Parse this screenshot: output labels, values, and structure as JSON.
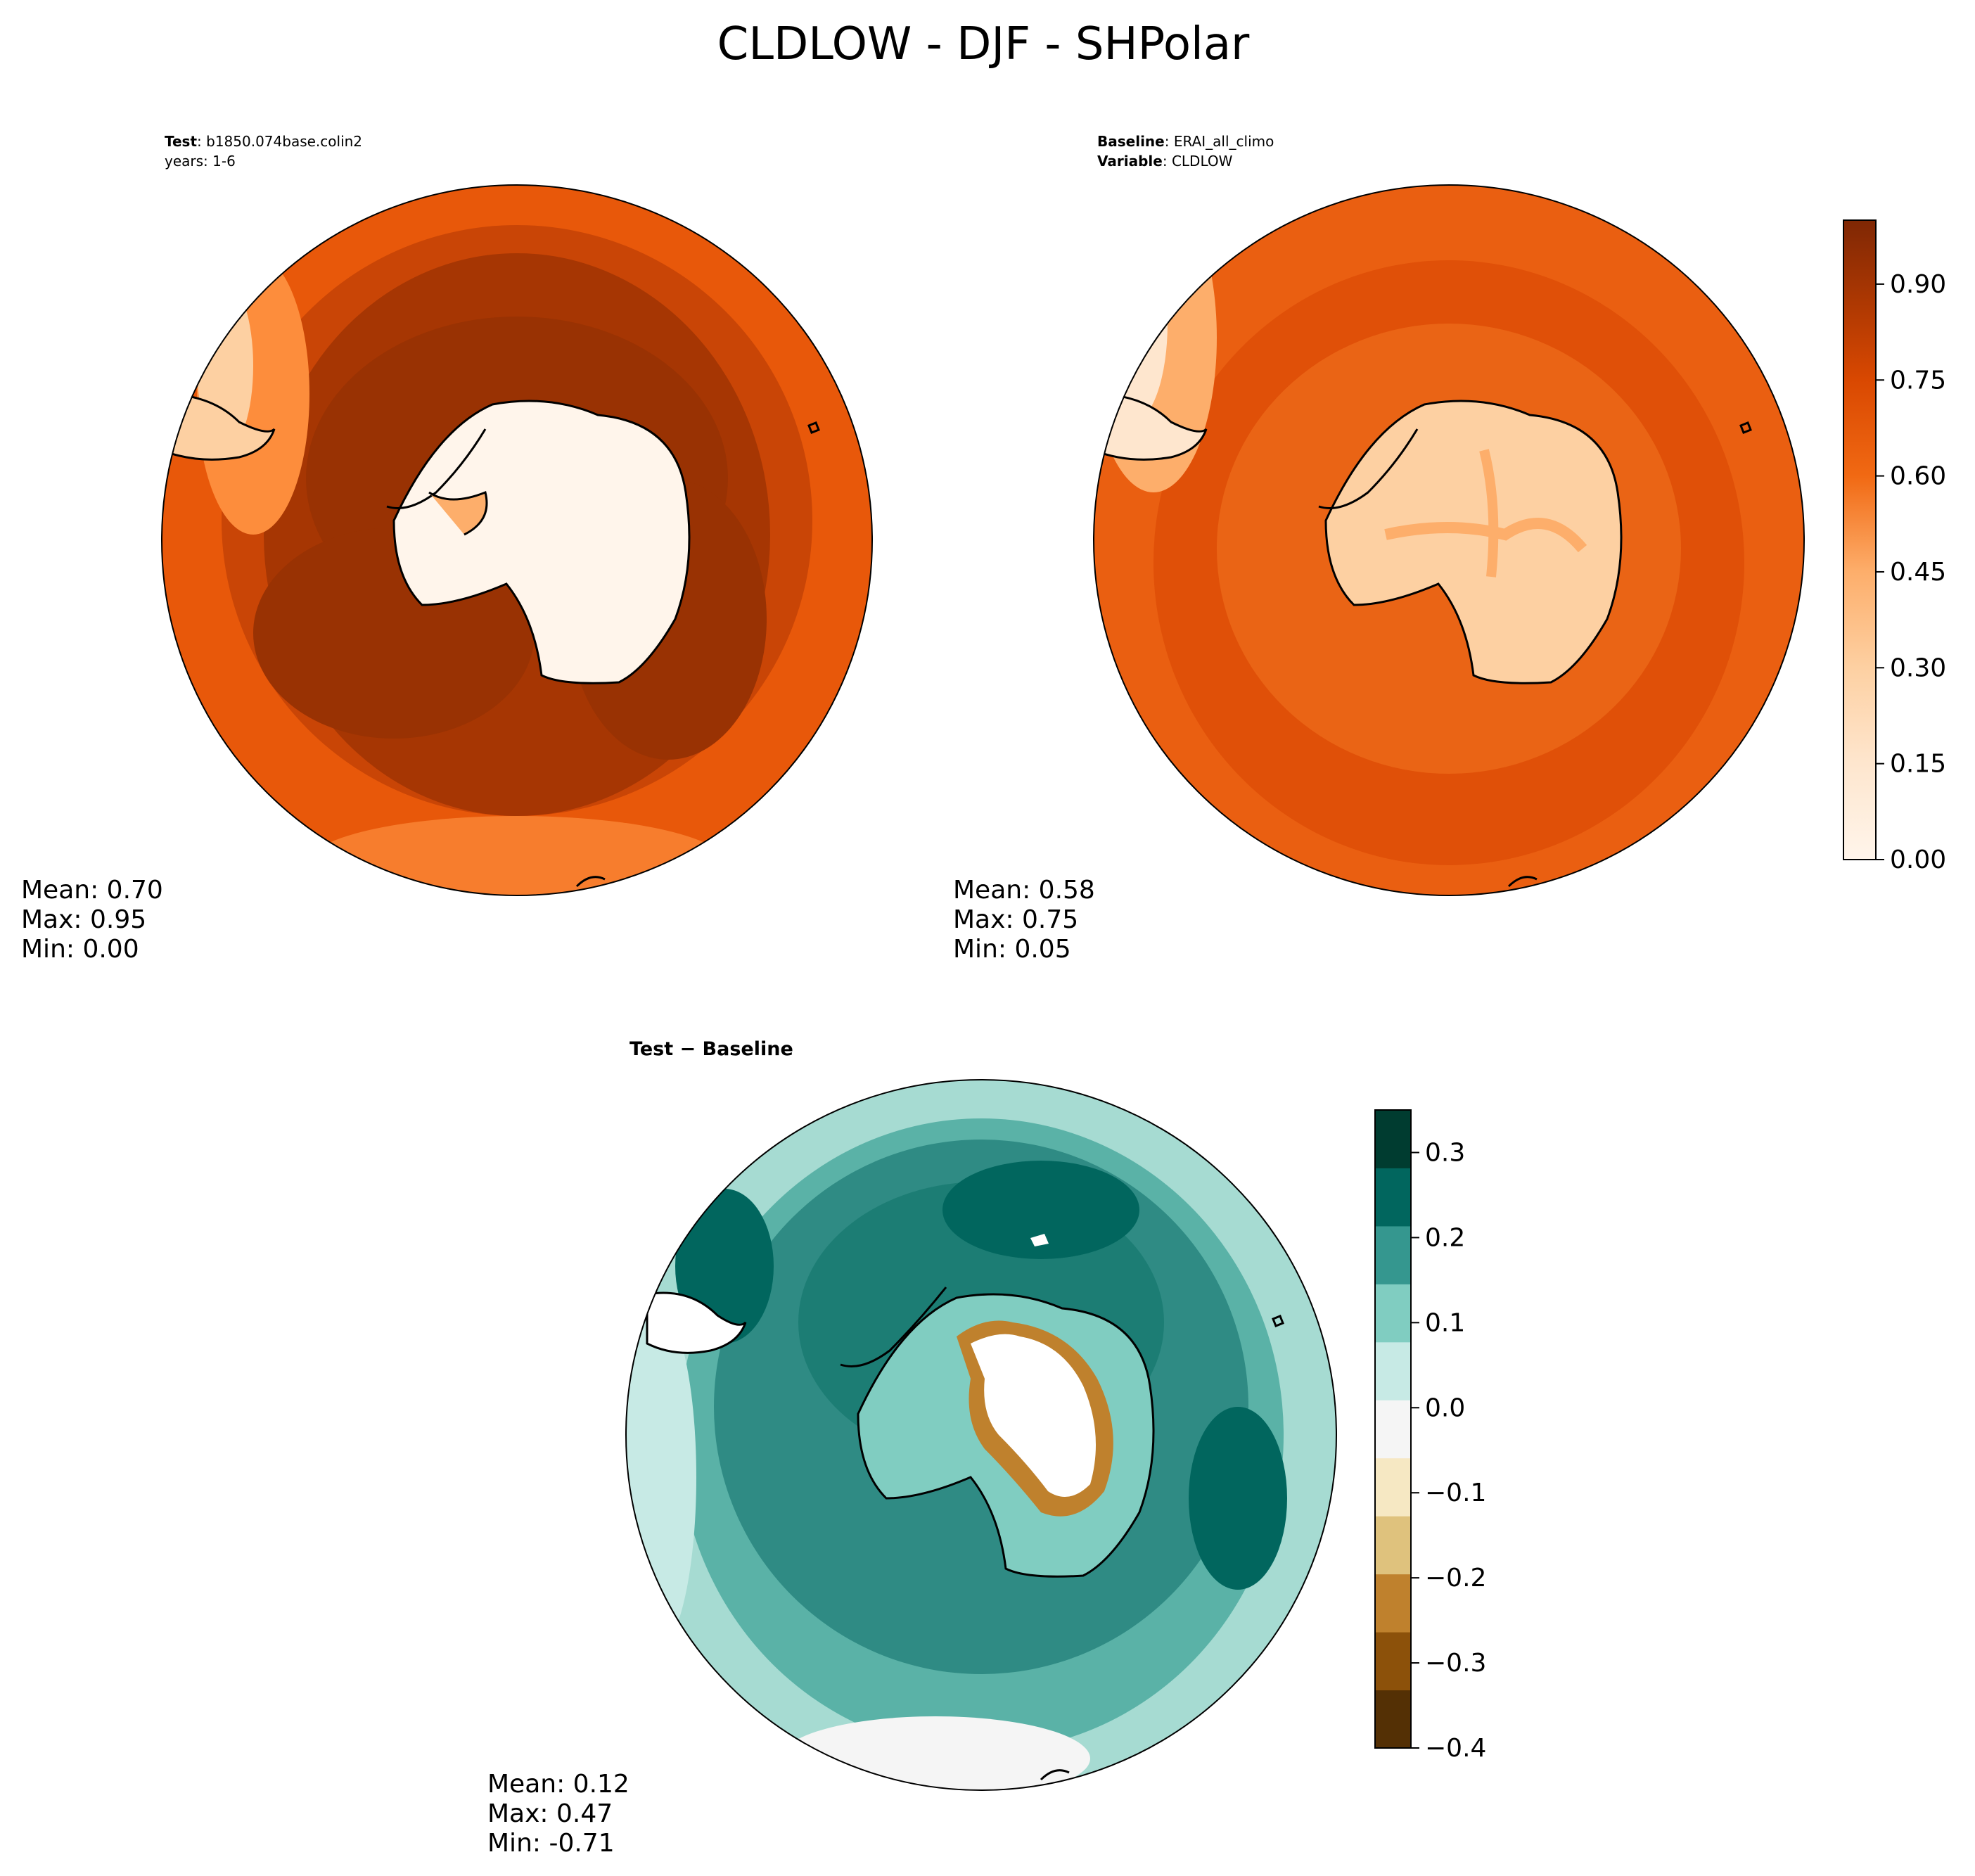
{
  "figure": {
    "title": "CLDLOW - DJF - SHPolar"
  },
  "panels": {
    "test": {
      "header_label": "Test",
      "header_value": "b1850.074base.colin2",
      "header_line2": "years: 1-6",
      "stats": {
        "mean": "Mean:  0.70",
        "max": "Max:  0.95",
        "min": "Min:  0.00"
      }
    },
    "baseline": {
      "header_label": "Baseline",
      "header_value": "ERAI_all_climo",
      "header_label2": "Variable",
      "header_value2": "CLDLOW",
      "stats": {
        "mean": "Mean:  0.58",
        "max": "Max:  0.75",
        "min": "Min:  0.05"
      }
    },
    "diff": {
      "title": "Test − Baseline",
      "stats": {
        "mean": "Mean:  0.12",
        "max": "Max:  0.47",
        "min": "Min: -0.71"
      }
    }
  },
  "colorbars": {
    "main": {
      "ticks": [
        "0.00",
        "0.15",
        "0.30",
        "0.45",
        "0.60",
        "0.75",
        "0.90"
      ],
      "tick_values": [
        0.0,
        0.15,
        0.3,
        0.45,
        0.6,
        0.75,
        0.9
      ],
      "range": [
        0.0,
        1.0
      ],
      "colors": [
        "#fff5eb",
        "#fee6ce",
        "#fdd0a2",
        "#fdae6b",
        "#fd8d3c",
        "#f16913",
        "#d94801",
        "#a63603",
        "#7f2704"
      ]
    },
    "diff": {
      "ticks": [
        "0.3",
        "0.2",
        "0.1",
        "0.0",
        "−0.1",
        "−0.2",
        "−0.3",
        "−0.4"
      ],
      "tick_values": [
        0.3,
        0.2,
        0.1,
        0.0,
        -0.1,
        -0.2,
        -0.3,
        -0.4
      ],
      "range": [
        -0.4,
        0.35
      ],
      "colors": [
        "#543005",
        "#8c510a",
        "#bf812d",
        "#dfc27d",
        "#f6e8c3",
        "#f5f5f5",
        "#c7eae5",
        "#80cdc1",
        "#35978f",
        "#01665e",
        "#003c30"
      ]
    }
  },
  "chart_data": [
    {
      "type": "heatmap",
      "title": "Test",
      "variable": "CLDLOW",
      "season": "DJF",
      "region": "SHPolar",
      "mean": 0.7,
      "max": 0.95,
      "min": 0.0,
      "colorbar_range": [
        0.0,
        1.0
      ]
    },
    {
      "type": "heatmap",
      "title": "Baseline",
      "variable": "CLDLOW",
      "mean": 0.58,
      "max": 0.75,
      "min": 0.05,
      "colorbar_range": [
        0.0,
        1.0
      ]
    },
    {
      "type": "heatmap",
      "title": "Test − Baseline",
      "mean": 0.12,
      "max": 0.47,
      "min": -0.71,
      "colorbar_range": [
        -0.4,
        0.35
      ]
    }
  ]
}
